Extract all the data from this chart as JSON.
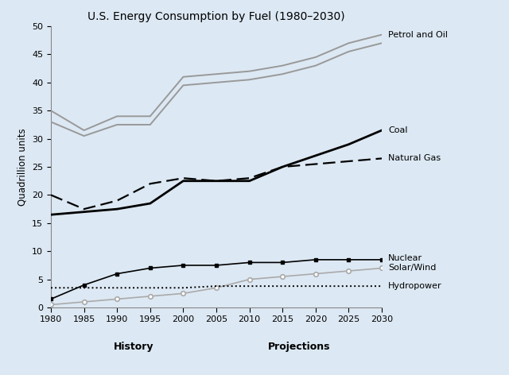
{
  "title": "U.S. Energy Consumption by Fuel (1980–2030)",
  "ylabel": "Quadrillion units",
  "xlabel_history": "History",
  "xlabel_projections": "Projections",
  "background_color": "#dce8f3",
  "years": [
    1980,
    1985,
    1990,
    1995,
    2000,
    2005,
    2010,
    2015,
    2020,
    2025,
    2030
  ],
  "petrol_oil_upper": [
    35.0,
    31.5,
    34.0,
    34.0,
    41.0,
    41.5,
    42.0,
    43.0,
    44.5,
    47.0,
    48.5
  ],
  "petrol_oil_lower": [
    33.0,
    30.5,
    32.5,
    32.5,
    39.5,
    40.0,
    40.5,
    41.5,
    43.0,
    45.5,
    47.0
  ],
  "coal": [
    16.5,
    17.0,
    17.5,
    18.5,
    22.5,
    22.5,
    22.5,
    25.0,
    27.0,
    29.0,
    31.5
  ],
  "natural_gas": [
    20.0,
    17.5,
    19.0,
    22.0,
    23.0,
    22.5,
    23.0,
    25.0,
    25.5,
    26.0,
    26.5
  ],
  "nuclear": [
    1.5,
    4.0,
    6.0,
    7.0,
    7.5,
    7.5,
    8.0,
    8.0,
    8.5,
    8.5,
    8.5
  ],
  "solar_wind": [
    0.5,
    1.0,
    1.5,
    2.0,
    2.5,
    3.5,
    5.0,
    5.5,
    6.0,
    6.5,
    7.0
  ],
  "hydropower": [
    3.5,
    3.5,
    3.5,
    3.5,
    3.5,
    3.8,
    3.8,
    3.8,
    3.8,
    3.8,
    3.8
  ],
  "ylim": [
    0,
    50
  ],
  "yticks": [
    0,
    5,
    10,
    15,
    20,
    25,
    30,
    35,
    40,
    45,
    50
  ],
  "split_year": 2005,
  "color_petrol": "#999999",
  "color_coal": "#000000",
  "color_natural_gas": "#000000",
  "color_nuclear": "#000000",
  "color_solar": "#aaaaaa",
  "color_hydropower": "#000000",
  "label_petrol": "Petrol and Oil",
  "label_coal": "Coal",
  "label_natural_gas": "Natural Gas",
  "label_nuclear": "Nuclear",
  "label_solar": "Solar/Wind",
  "label_hydropower": "Hydropower"
}
